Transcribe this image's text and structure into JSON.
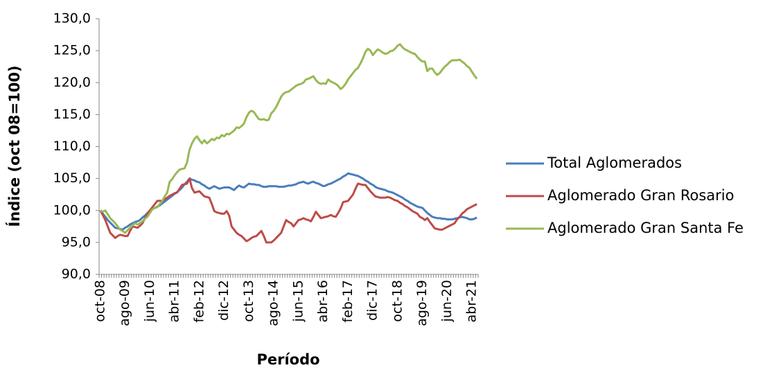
{
  "chart_data": {
    "type": "line",
    "y_label": "Índice (oct 08=100)",
    "x_label": "Período",
    "categories": [
      "oct-08",
      null,
      null,
      null,
      null,
      null,
      null,
      null,
      null,
      null,
      "ago-09",
      null,
      null,
      null,
      null,
      null,
      null,
      null,
      null,
      null,
      "jun-10",
      null,
      null,
      null,
      null,
      null,
      null,
      null,
      null,
      null,
      "abr-11",
      null,
      null,
      null,
      null,
      null,
      null,
      null,
      null,
      null,
      "feb-12",
      null,
      null,
      null,
      null,
      null,
      null,
      null,
      null,
      null,
      "dic-12",
      null,
      null,
      null,
      null,
      null,
      null,
      null,
      null,
      null,
      "oct-13",
      null,
      null,
      null,
      null,
      null,
      null,
      null,
      null,
      null,
      "ago-14",
      null,
      null,
      null,
      null,
      null,
      null,
      null,
      null,
      null,
      "jun-15",
      null,
      null,
      null,
      null,
      null,
      null,
      null,
      null,
      null,
      "abr-16",
      null,
      null,
      null,
      null,
      null,
      null,
      null,
      null,
      null,
      "feb-17",
      null,
      null,
      null,
      null,
      null,
      null,
      null,
      null,
      null,
      "dic-17",
      null,
      null,
      null,
      null,
      null,
      null,
      null,
      null,
      null,
      "oct-18",
      null,
      null,
      null,
      null,
      null,
      null,
      null,
      null,
      null,
      "ago-19",
      null,
      null,
      null,
      null,
      null,
      null,
      null,
      null,
      null,
      "jun-20",
      null,
      null,
      null,
      null,
      null,
      null,
      null,
      null,
      null,
      "abr-21",
      null,
      null
    ],
    "series": [
      {
        "name": "Total Aglomerados",
        "color": "#4a7ebb",
        "values": [
          100.0,
          99.5,
          99.0,
          98.5,
          98.1,
          97.7,
          97.3,
          97.2,
          97.1,
          97.0,
          97.3,
          97.5,
          97.8,
          98.0,
          98.2,
          98.3,
          98.5,
          98.9,
          99.2,
          99.6,
          100.0,
          100.2,
          100.4,
          100.6,
          100.8,
          101.1,
          101.4,
          101.7,
          102.0,
          102.3,
          102.6,
          102.9,
          103.2,
          103.6,
          104.1,
          104.5,
          105.0,
          104.8,
          104.7,
          104.5,
          104.4,
          104.1,
          103.9,
          103.6,
          103.4,
          103.6,
          103.8,
          103.6,
          103.4,
          103.5,
          103.6,
          103.6,
          103.6,
          103.4,
          103.2,
          103.6,
          103.9,
          103.7,
          103.6,
          103.9,
          104.2,
          104.1,
          104.1,
          104.0,
          104.0,
          103.8,
          103.7,
          103.7,
          103.8,
          103.8,
          103.8,
          103.8,
          103.7,
          103.7,
          103.7,
          103.8,
          103.9,
          103.9,
          104.0,
          104.1,
          104.3,
          104.4,
          104.5,
          104.3,
          104.2,
          104.4,
          104.5,
          104.3,
          104.2,
          104.0,
          103.8,
          103.9,
          104.1,
          104.2,
          104.4,
          104.6,
          104.8,
          105.0,
          105.3,
          105.5,
          105.8,
          105.7,
          105.6,
          105.5,
          105.4,
          105.2,
          105.0,
          104.7,
          104.5,
          104.2,
          104.0,
          103.7,
          103.5,
          103.4,
          103.3,
          103.2,
          103.0,
          102.9,
          102.8,
          102.6,
          102.4,
          102.2,
          102.0,
          101.7,
          101.5,
          101.2,
          101.0,
          100.8,
          100.6,
          100.5,
          100.4,
          100.0,
          99.6,
          99.3,
          99.0,
          98.9,
          98.8,
          98.8,
          98.7,
          98.7,
          98.6,
          98.6,
          98.6,
          98.7,
          98.8,
          98.9,
          99.0,
          98.9,
          98.8,
          98.6,
          98.6,
          98.7,
          98.9
        ]
      },
      {
        "name": "Aglomerado Gran Rosario",
        "color": "#be4b48",
        "values": [
          100.0,
          99.3,
          98.5,
          97.5,
          96.5,
          96.1,
          95.7,
          96.0,
          96.2,
          96.1,
          96.0,
          96.0,
          96.8,
          97.5,
          97.4,
          97.3,
          97.6,
          98.0,
          98.8,
          99.5,
          100.0,
          100.5,
          101.0,
          101.5,
          101.5,
          101.5,
          101.8,
          102.0,
          102.3,
          102.5,
          102.7,
          102.8,
          103.4,
          104.0,
          104.1,
          104.2,
          105.0,
          103.5,
          102.8,
          102.9,
          103.0,
          102.6,
          102.2,
          102.1,
          102.0,
          101.0,
          99.9,
          99.7,
          99.6,
          99.5,
          99.5,
          99.9,
          99.2,
          97.5,
          97.0,
          96.5,
          96.2,
          96.0,
          95.6,
          95.2,
          95.4,
          95.7,
          95.9,
          96.0,
          96.4,
          96.8,
          96.0,
          95.0,
          95.0,
          95.0,
          95.3,
          95.7,
          96.1,
          96.5,
          97.5,
          98.5,
          98.2,
          98.0,
          97.5,
          98.0,
          98.5,
          98.6,
          98.8,
          98.6,
          98.5,
          98.3,
          99.0,
          99.8,
          99.3,
          98.8,
          98.9,
          99.0,
          99.1,
          99.3,
          99.1,
          99.0,
          99.6,
          100.3,
          101.3,
          101.4,
          101.5,
          102.0,
          102.5,
          103.4,
          104.2,
          104.1,
          104.0,
          104.0,
          103.5,
          103.0,
          102.6,
          102.2,
          102.1,
          102.0,
          102.0,
          102.0,
          102.1,
          102.0,
          101.8,
          101.6,
          101.5,
          101.2,
          101.0,
          100.7,
          100.5,
          100.2,
          99.9,
          99.7,
          99.5,
          99.0,
          98.8,
          98.5,
          98.8,
          98.2,
          97.7,
          97.2,
          97.1,
          97.0,
          97.0,
          97.2,
          97.4,
          97.6,
          97.8,
          98.0,
          98.6,
          99.0,
          99.5,
          99.8,
          100.2,
          100.4,
          100.6,
          100.8,
          101.0
        ]
      },
      {
        "name": "Aglomerado Gran Santa Fe",
        "color": "#98b954",
        "values": [
          100.0,
          99.8,
          100.0,
          99.4,
          98.8,
          98.4,
          98.0,
          97.5,
          97.0,
          96.8,
          96.5,
          96.9,
          97.3,
          97.7,
          98.0,
          97.8,
          98.0,
          98.3,
          98.7,
          99.0,
          99.6,
          100.2,
          100.4,
          100.5,
          101.0,
          101.5,
          102.2,
          102.8,
          104.5,
          104.9,
          105.5,
          106.0,
          106.4,
          106.5,
          106.6,
          107.5,
          109.5,
          110.5,
          111.2,
          111.6,
          111.0,
          110.5,
          111.0,
          110.5,
          110.8,
          111.2,
          111.0,
          111.4,
          111.3,
          111.8,
          111.6,
          112.0,
          111.9,
          112.2,
          112.5,
          113.0,
          112.9,
          113.2,
          113.6,
          114.6,
          115.3,
          115.6,
          115.4,
          114.8,
          114.3,
          114.2,
          114.3,
          114.1,
          114.2,
          115.2,
          115.6,
          116.2,
          117.0,
          117.8,
          118.3,
          118.5,
          118.6,
          118.9,
          119.2,
          119.5,
          119.7,
          119.8,
          120.0,
          120.5,
          120.6,
          120.8,
          121.0,
          120.4,
          120.0,
          119.8,
          119.9,
          119.8,
          120.5,
          120.2,
          120.0,
          119.8,
          119.5,
          119.0,
          119.3,
          119.8,
          120.5,
          121.0,
          121.5,
          122.0,
          122.3,
          123.0,
          123.8,
          124.8,
          125.3,
          125.0,
          124.3,
          124.8,
          125.2,
          125.0,
          124.7,
          124.5,
          124.6,
          124.9,
          125.0,
          125.3,
          125.8,
          126.0,
          125.5,
          125.2,
          125.0,
          124.8,
          124.6,
          124.5,
          124.0,
          123.6,
          123.3,
          123.3,
          121.8,
          122.2,
          122.2,
          121.6,
          121.2,
          121.5,
          122.0,
          122.5,
          122.8,
          123.2,
          123.5,
          123.5,
          123.5,
          123.6,
          123.3,
          123.0,
          122.6,
          122.3,
          121.7,
          121.1,
          120.6
        ]
      }
    ],
    "ylim": [
      90,
      130
    ],
    "yticks": [
      {
        "value": 90,
        "label": "90,0"
      },
      {
        "value": 95,
        "label": "95,0"
      },
      {
        "value": 100,
        "label": "100,0"
      },
      {
        "value": 105,
        "label": "105,0"
      },
      {
        "value": 110,
        "label": "110,0"
      },
      {
        "value": 115,
        "label": "115,0"
      },
      {
        "value": 120,
        "label": "120,0"
      },
      {
        "value": 125,
        "label": "125,0"
      },
      {
        "value": 130,
        "label": "130,0"
      }
    ],
    "grid": false,
    "legend": "right"
  }
}
